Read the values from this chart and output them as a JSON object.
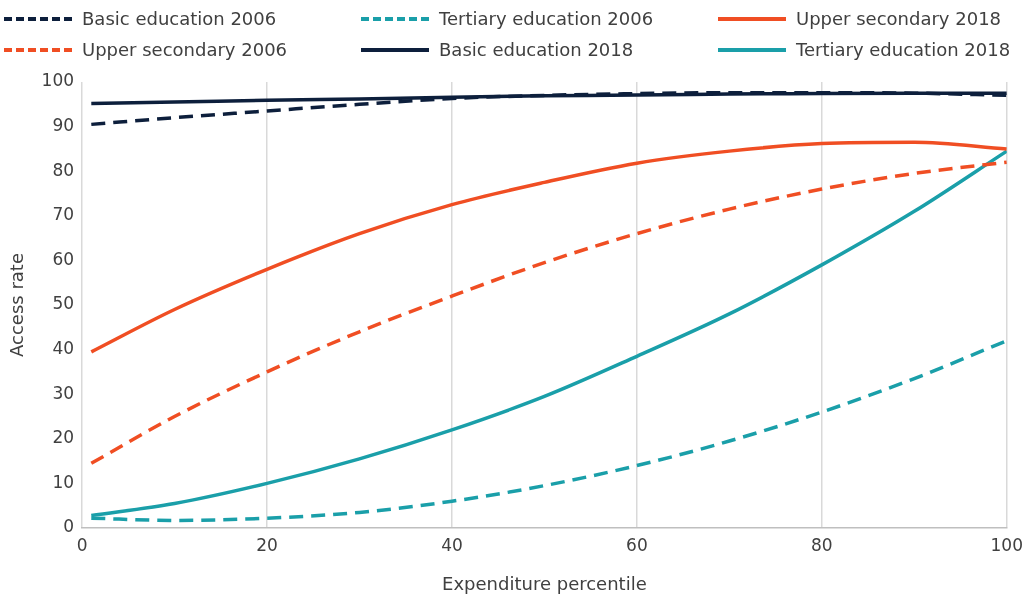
{
  "chart_data": {
    "type": "line",
    "xlabel": "Expenditure percentile",
    "ylabel": "Access rate",
    "x": [
      1,
      10,
      20,
      30,
      40,
      50,
      60,
      70,
      80,
      90,
      100
    ],
    "xlim": [
      0,
      100
    ],
    "xticks": [
      0,
      20,
      40,
      60,
      80,
      100
    ],
    "ylim": [
      0,
      100
    ],
    "yticks": [
      0,
      10,
      20,
      30,
      40,
      50,
      60,
      70,
      80,
      90,
      100
    ],
    "grid": "x",
    "legend": "top",
    "series": [
      {
        "name": "Basic education 2006",
        "color": "#0d1f3c",
        "line_style": "dashed",
        "values": [
          90.5,
          92,
          93.5,
          95,
          96.3,
          97,
          97.4,
          97.6,
          97.6,
          97.5,
          97
        ]
      },
      {
        "name": "Tertiary education 2006",
        "color": "#1a9fa9",
        "line_style": "dashed",
        "values": [
          2.2,
          1.7,
          2.2,
          3.5,
          6,
          9.5,
          14,
          19.5,
          26,
          33.5,
          42
        ]
      },
      {
        "name": "Upper secondary 2018",
        "color": "#f04e23",
        "line_style": "solid",
        "values": [
          39.5,
          49,
          58,
          66,
          72.5,
          77.5,
          81.8,
          84.5,
          86.2,
          86.5,
          85
        ]
      },
      {
        "name": "Upper secondary 2006",
        "color": "#f04e23",
        "line_style": "dashed",
        "values": [
          14.5,
          25,
          35,
          44,
          52,
          59.5,
          66,
          71.5,
          76,
          79.5,
          82
        ]
      },
      {
        "name": "Basic education 2018",
        "color": "#0d1f3c",
        "line_style": "solid",
        "values": [
          95.2,
          95.5,
          95.9,
          96.2,
          96.6,
          96.9,
          97.1,
          97.3,
          97.4,
          97.5,
          97.5
        ]
      },
      {
        "name": "Tertiary education 2018",
        "color": "#1a9fa9",
        "line_style": "solid",
        "values": [
          2.8,
          5.5,
          10,
          15.5,
          22,
          29.5,
          38.5,
          48,
          59,
          71,
          84.5
        ]
      }
    ]
  }
}
